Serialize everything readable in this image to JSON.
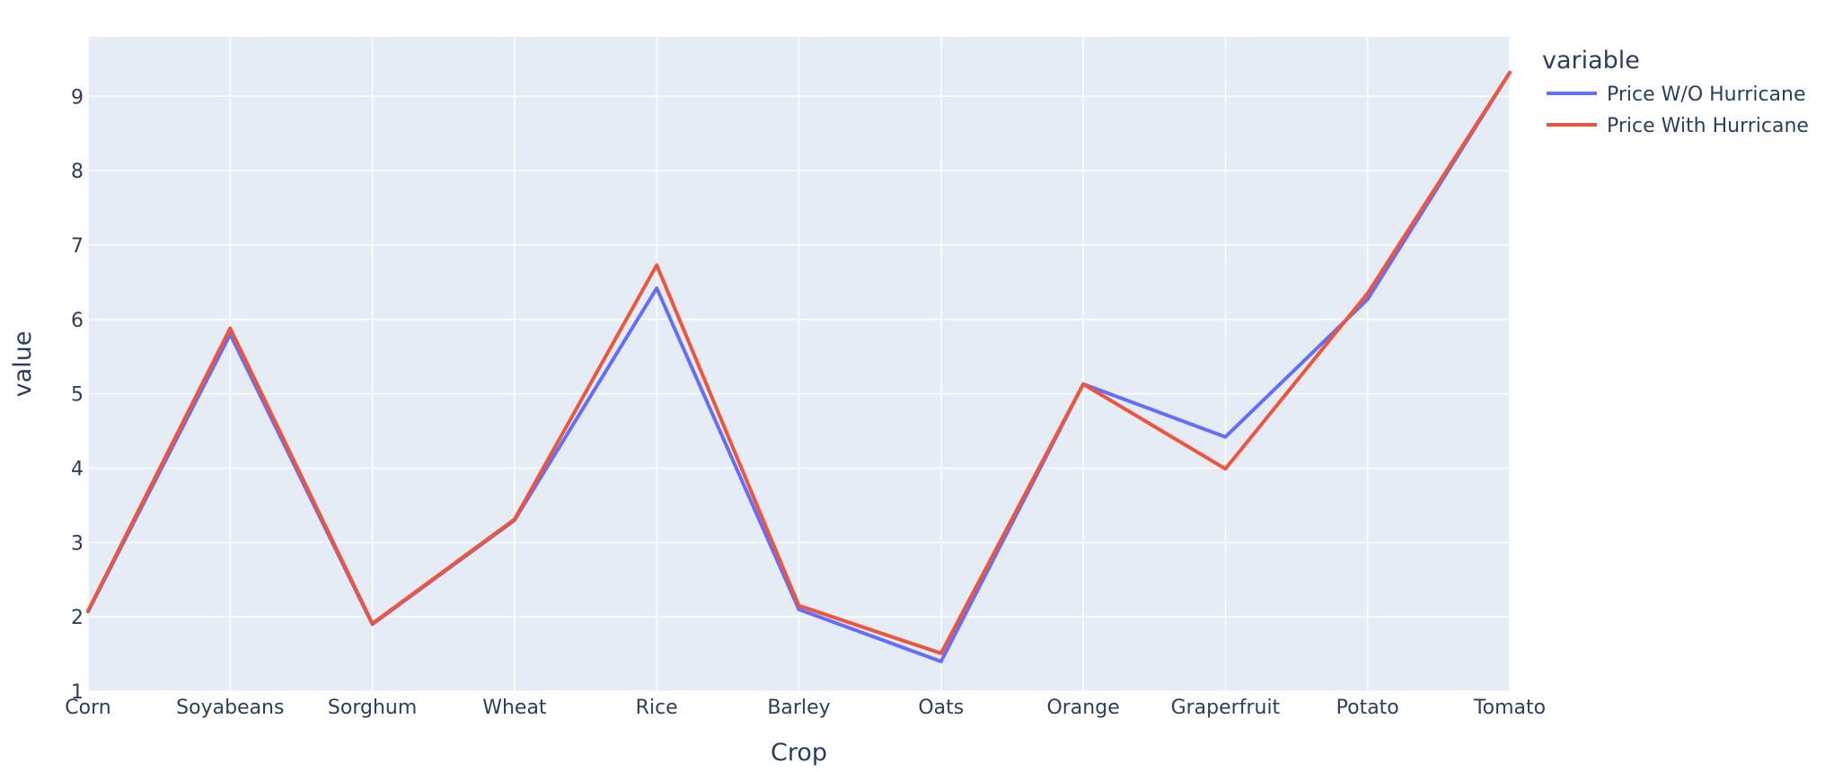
{
  "chart_data": {
    "type": "line",
    "xlabel": "Crop",
    "ylabel": "value",
    "categories": [
      "Corn",
      "Soyabeans",
      "Sorghum",
      "Wheat",
      "Rice",
      "Barley",
      "Oats",
      "Orange",
      "Graperfruit",
      "Potato",
      "Tomato"
    ],
    "ylim": [
      1,
      9.8
    ],
    "yticks": [
      1,
      2,
      3,
      4,
      5,
      6,
      7,
      8,
      9
    ],
    "grid": true,
    "legend": {
      "title": "variable",
      "placement": "top-right"
    },
    "series": [
      {
        "name": "Price W/O Hurricane",
        "color": "#636efa",
        "values": [
          2.07,
          5.8,
          1.9,
          3.3,
          6.42,
          2.1,
          1.4,
          5.13,
          4.42,
          6.27,
          9.32
        ]
      },
      {
        "name": "Price With Hurricane",
        "color": "#ef553b",
        "values": [
          2.08,
          5.88,
          1.91,
          3.31,
          6.73,
          2.15,
          1.51,
          5.13,
          3.99,
          6.35,
          9.32
        ]
      }
    ],
    "colors": {
      "plot_background": "#e5ecf6",
      "grid": "#ffffff",
      "text": "#2a3f5f"
    }
  }
}
